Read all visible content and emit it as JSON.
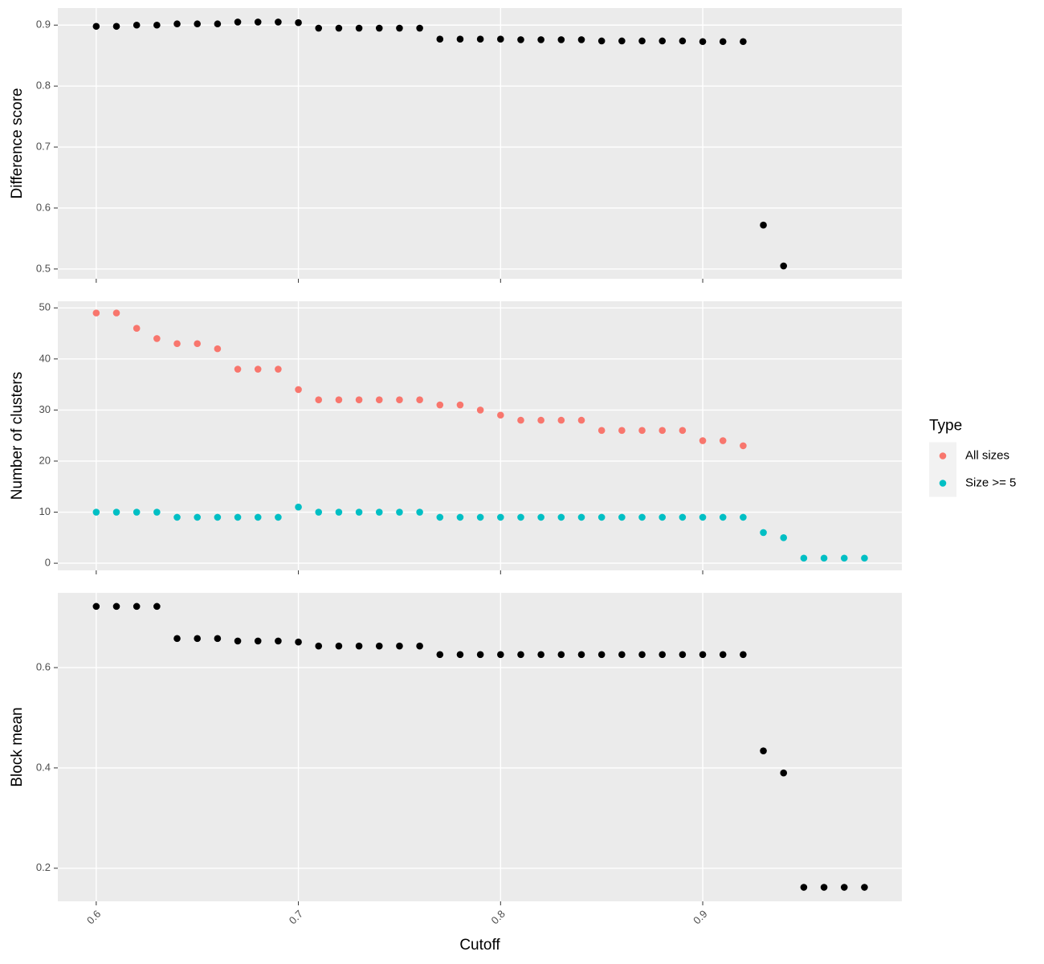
{
  "chart_data": [
    {
      "type": "scatter",
      "ylabel": "Difference score",
      "x": [
        0.6,
        0.61,
        0.62,
        0.63,
        0.64,
        0.65,
        0.66,
        0.67,
        0.68,
        0.69,
        0.7,
        0.71,
        0.72,
        0.73,
        0.74,
        0.75,
        0.76,
        0.77,
        0.78,
        0.79,
        0.8,
        0.81,
        0.82,
        0.83,
        0.84,
        0.85,
        0.86,
        0.87,
        0.88,
        0.89,
        0.9,
        0.91,
        0.92,
        0.93,
        0.94,
        0.95,
        0.96,
        0.97,
        0.98
      ],
      "series": [
        {
          "color": "#000000",
          "values": [
            0.898,
            0.898,
            0.9,
            0.9,
            0.902,
            0.902,
            0.902,
            0.905,
            0.905,
            0.905,
            0.904,
            0.895,
            0.895,
            0.895,
            0.895,
            0.895,
            0.895,
            0.877,
            0.877,
            0.877,
            0.877,
            0.876,
            0.876,
            0.876,
            0.876,
            0.874,
            0.874,
            0.874,
            0.874,
            0.874,
            0.873,
            0.873,
            0.873,
            0.572,
            0.505,
            null,
            null,
            null,
            null
          ]
        }
      ],
      "xlim": [
        0.581,
        0.9985
      ],
      "xticks": [
        0.6,
        0.7,
        0.8,
        0.9
      ],
      "ylim": [
        0.484,
        0.928
      ],
      "yticks": [
        0.5,
        0.6,
        0.7,
        0.8,
        0.9
      ],
      "grid": true
    },
    {
      "type": "scatter",
      "ylabel": "Number of clusters",
      "legend_title": "Type",
      "x": [
        0.6,
        0.61,
        0.62,
        0.63,
        0.64,
        0.65,
        0.66,
        0.67,
        0.68,
        0.69,
        0.7,
        0.71,
        0.72,
        0.73,
        0.74,
        0.75,
        0.76,
        0.77,
        0.78,
        0.79,
        0.8,
        0.81,
        0.82,
        0.83,
        0.84,
        0.85,
        0.86,
        0.87,
        0.88,
        0.89,
        0.9,
        0.91,
        0.92,
        0.93,
        0.94,
        0.95,
        0.96,
        0.97,
        0.98
      ],
      "series": [
        {
          "name": "All sizes",
          "color": "#F8766D",
          "values": [
            49,
            49,
            46,
            44,
            43,
            43,
            42,
            38,
            38,
            38,
            34,
            32,
            32,
            32,
            32,
            32,
            32,
            31,
            31,
            30,
            29,
            28,
            28,
            28,
            28,
            26,
            26,
            26,
            26,
            26,
            24,
            24,
            23,
            null,
            null,
            null,
            null,
            null,
            null
          ]
        },
        {
          "name": "Size >= 5",
          "color": "#00BFC4",
          "values": [
            10,
            10,
            10,
            10,
            9,
            9,
            9,
            9,
            9,
            9,
            11,
            10,
            10,
            10,
            10,
            10,
            10,
            9,
            9,
            9,
            9,
            9,
            9,
            9,
            9,
            9,
            9,
            9,
            9,
            9,
            9,
            9,
            9,
            6,
            5,
            1,
            1,
            1,
            1
          ]
        }
      ],
      "xlim": [
        0.581,
        0.9985
      ],
      "xticks": [
        0.6,
        0.7,
        0.8,
        0.9
      ],
      "ylim": [
        -1.4,
        51.3
      ],
      "yticks": [
        0,
        10,
        20,
        30,
        40,
        50
      ],
      "grid": true
    },
    {
      "type": "scatter",
      "ylabel": "Block mean",
      "xlabel": "Cutoff",
      "x": [
        0.6,
        0.61,
        0.62,
        0.63,
        0.64,
        0.65,
        0.66,
        0.67,
        0.68,
        0.69,
        0.7,
        0.71,
        0.72,
        0.73,
        0.74,
        0.75,
        0.76,
        0.77,
        0.78,
        0.79,
        0.8,
        0.81,
        0.82,
        0.83,
        0.84,
        0.85,
        0.86,
        0.87,
        0.88,
        0.89,
        0.9,
        0.91,
        0.92,
        0.93,
        0.94,
        0.95,
        0.96,
        0.97,
        0.98
      ],
      "series": [
        {
          "color": "#000000",
          "values": [
            0.722,
            0.722,
            0.722,
            0.722,
            0.658,
            0.658,
            0.658,
            0.653,
            0.653,
            0.653,
            0.651,
            0.643,
            0.643,
            0.643,
            0.643,
            0.643,
            0.643,
            0.626,
            0.626,
            0.626,
            0.626,
            0.626,
            0.626,
            0.626,
            0.626,
            0.626,
            0.626,
            0.626,
            0.626,
            0.626,
            0.626,
            0.626,
            0.626,
            0.434,
            0.39,
            0.162,
            0.162,
            0.162,
            0.162
          ]
        }
      ],
      "xlim": [
        0.581,
        0.9985
      ],
      "xticks": [
        0.6,
        0.7,
        0.8,
        0.9
      ],
      "ylim": [
        0.134,
        0.749
      ],
      "yticks": [
        0.2,
        0.4,
        0.6
      ],
      "grid": true
    }
  ]
}
